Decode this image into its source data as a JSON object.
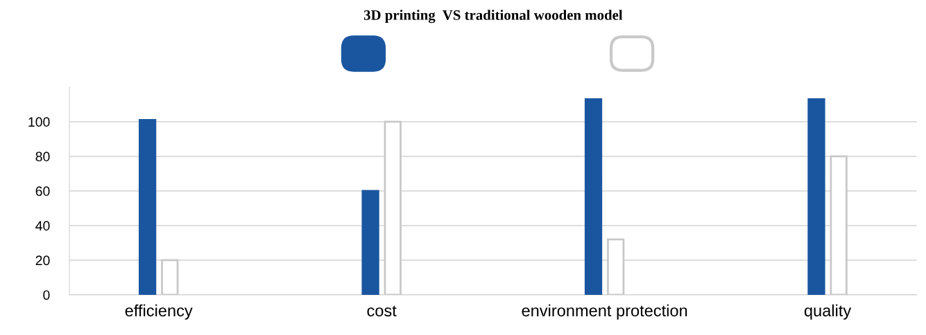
{
  "chart_data": {
    "type": "bar",
    "title": "3D printing  VS traditional wooden model",
    "categories": [
      "efficiency",
      "cost",
      "environment protection",
      "quality"
    ],
    "series": [
      {
        "color": "#1a56a0",
        "values": [
          101,
          60,
          113,
          113
        ]
      },
      {
        "color": "#ffffff",
        "values": [
          20,
          100,
          32,
          80
        ]
      }
    ],
    "ylim": [
      0,
      120
    ],
    "yticks": [
      0,
      20,
      40,
      60,
      80,
      100
    ],
    "grid": "y"
  }
}
